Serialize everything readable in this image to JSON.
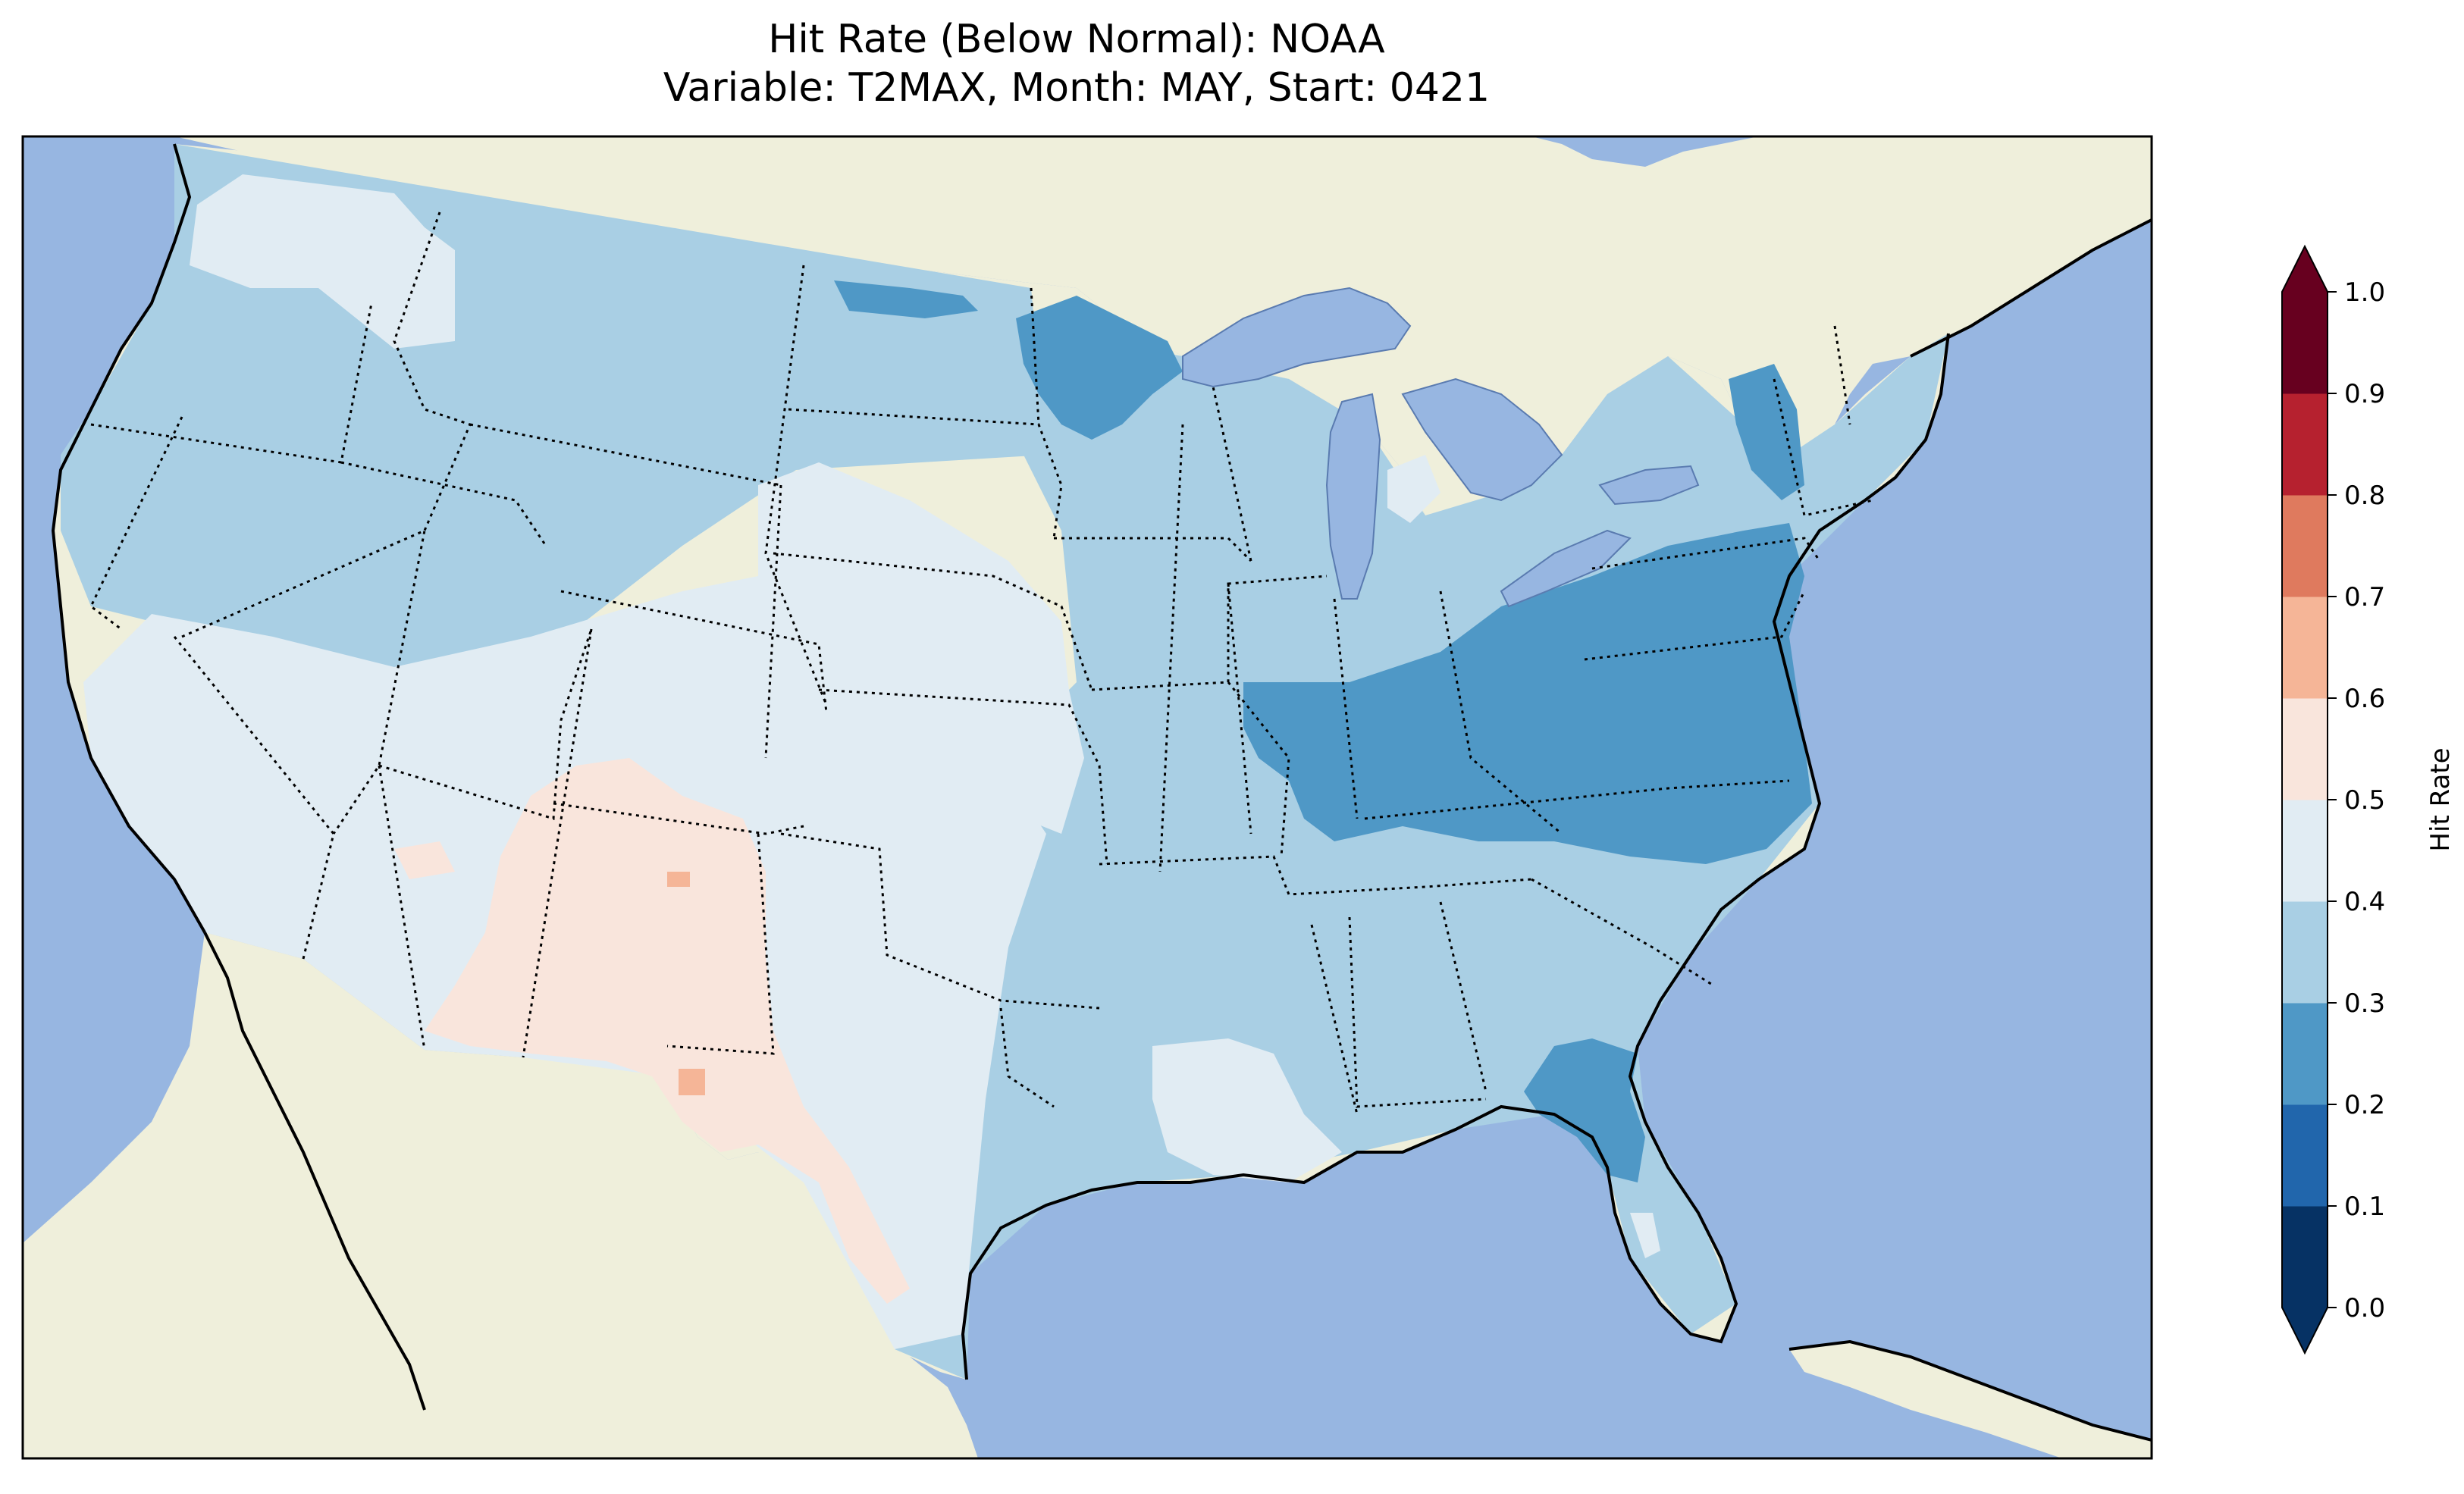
{
  "title": {
    "line1": "Hit Rate (Below Normal): NOAA",
    "line2": "Variable: T2MAX, Month: MAY, Start: 0421"
  },
  "colors": {
    "ocean": "#97b6e1",
    "land": "#efefdb",
    "lakes": "#97b6e1"
  },
  "colorbar": {
    "label": "Hit Rate",
    "ticks": [
      "0.0",
      "0.1",
      "0.2",
      "0.3",
      "0.4",
      "0.5",
      "0.6",
      "0.7",
      "0.8",
      "0.9",
      "1.0"
    ],
    "bins": [
      {
        "range": [
          0.0,
          0.1
        ],
        "color": "#063264"
      },
      {
        "range": [
          0.1,
          0.2
        ],
        "color": "#2166ac"
      },
      {
        "range": [
          0.2,
          0.3
        ],
        "color": "#4f98c6"
      },
      {
        "range": [
          0.3,
          0.4
        ],
        "color": "#a9cfe4"
      },
      {
        "range": [
          0.4,
          0.5
        ],
        "color": "#e1ecf3"
      },
      {
        "range": [
          0.5,
          0.6
        ],
        "color": "#f9e5dc"
      },
      {
        "range": [
          0.6,
          0.7
        ],
        "color": "#f5b597"
      },
      {
        "range": [
          0.7,
          0.8
        ],
        "color": "#df7a5e"
      },
      {
        "range": [
          0.8,
          0.9
        ],
        "color": "#b6212f"
      },
      {
        "range": [
          0.9,
          1.0
        ],
        "color": "#67001f"
      }
    ],
    "extend": "both"
  }
}
